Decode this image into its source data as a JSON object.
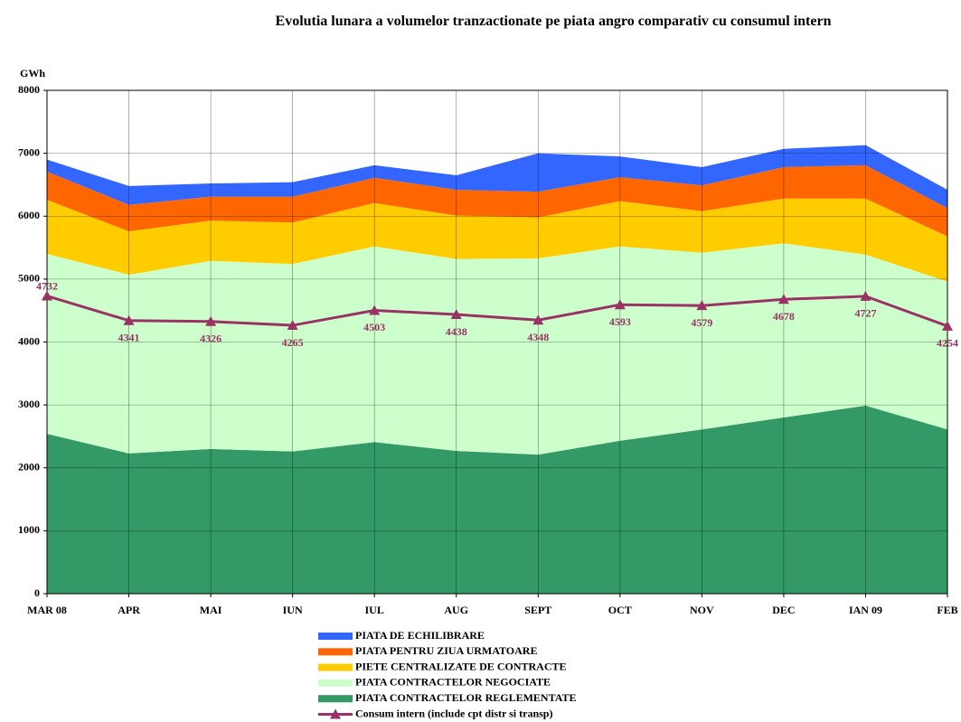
{
  "chart_data": {
    "type": "stacked-area-line",
    "title": "Evolutia lunara a volumelor tranzactionate pe piata angro comparativ cu consumul intern",
    "ylabel": "GWh",
    "categories": [
      "MAR 08",
      "APR",
      "MAI",
      "IUN",
      "IUL",
      "AUG",
      "SEPT",
      "OCT",
      "NOV",
      "DEC",
      "IAN 09",
      "FEB"
    ],
    "ylim": [
      0,
      8000
    ],
    "yticks": [
      0,
      1000,
      2000,
      3000,
      4000,
      5000,
      6000,
      7000,
      8000
    ],
    "grid": true,
    "series": [
      {
        "name": "PIATA DE ECHILIBRARE",
        "color": "#3366ff",
        "values": [
          190,
          300,
          210,
          230,
          200,
          230,
          610,
          330,
          290,
          290,
          320,
          290
        ]
      },
      {
        "name": "PIATA PENTRU ZIUA URMATOARE",
        "color": "#ff6600",
        "values": [
          450,
          420,
          380,
          410,
          400,
          410,
          410,
          380,
          410,
          500,
          530,
          450
        ]
      },
      {
        "name": "PIETE CENTRALIZATE DE CONTRACTE",
        "color": "#ffcc00",
        "values": [
          860,
          690,
          640,
          660,
          690,
          690,
          650,
          720,
          660,
          710,
          890,
          720
        ]
      },
      {
        "name": "PIATA CONTRACTELOR NEGOCIATE",
        "color": "#ccffcc",
        "values": [
          2860,
          2840,
          2990,
          2980,
          3110,
          3050,
          3120,
          3090,
          2810,
          2770,
          2400,
          2350
        ]
      },
      {
        "name": "PIATA CONTRACTELOR REGLEMENTATE",
        "color": "#339966",
        "values": [
          2540,
          2230,
          2300,
          2260,
          2410,
          2270,
          2210,
          2430,
          2610,
          2800,
          2990,
          2610
        ]
      },
      {
        "name": "Consum intern (include cpt distr si transp)",
        "color": "#993366",
        "type": "line",
        "values": [
          4732,
          4341,
          4326,
          4265,
          4503,
          4438,
          4348,
          4593,
          4579,
          4678,
          4727,
          4254
        ]
      }
    ]
  }
}
